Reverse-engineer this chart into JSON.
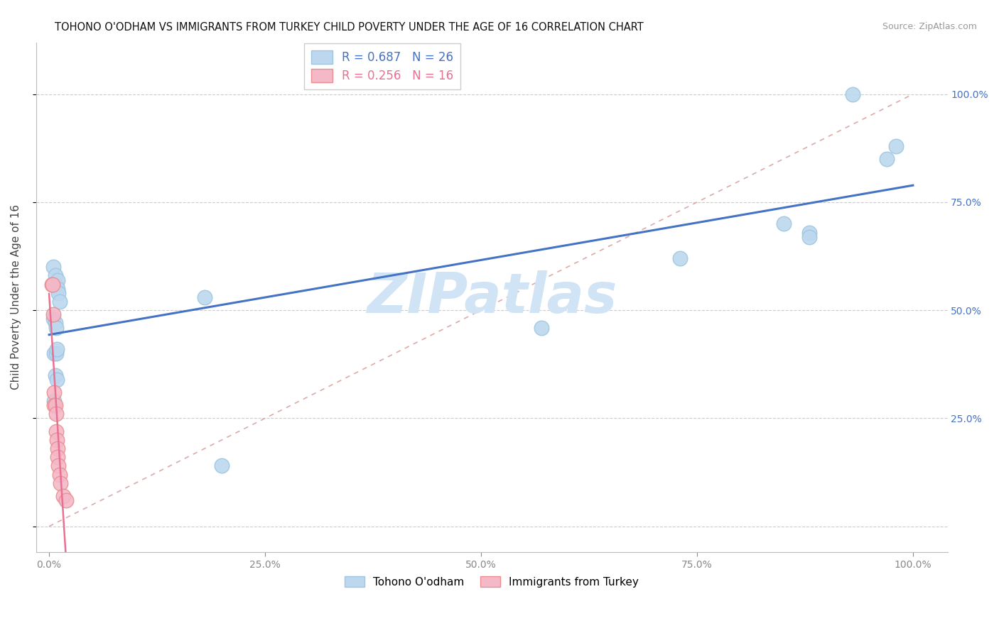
{
  "title": "TOHONO O'ODHAM VS IMMIGRANTS FROM TURKEY CHILD POVERTY UNDER THE AGE OF 16 CORRELATION CHART",
  "source": "Source: ZipAtlas.com",
  "ylabel": "Child Poverty Under the Age of 16",
  "blue_label": "Tohono O'odham",
  "pink_label": "Immigrants from Turkey",
  "blue_R": 0.687,
  "blue_N": 26,
  "pink_R": 0.256,
  "pink_N": 16,
  "blue_points_x": [
    0.005,
    0.007,
    0.008,
    0.01,
    0.01,
    0.011,
    0.012,
    0.005,
    0.007,
    0.008,
    0.006,
    0.008,
    0.009,
    0.007,
    0.009,
    0.006,
    0.18,
    0.2,
    0.57,
    0.73,
    0.85,
    0.88,
    0.88,
    0.93,
    0.97,
    0.98
  ],
  "blue_points_y": [
    0.6,
    0.58,
    0.56,
    0.57,
    0.55,
    0.54,
    0.52,
    0.48,
    0.47,
    0.46,
    0.4,
    0.4,
    0.41,
    0.35,
    0.34,
    0.29,
    0.53,
    0.14,
    0.46,
    0.62,
    0.7,
    0.68,
    0.67,
    1.0,
    0.85,
    0.88
  ],
  "pink_points_x": [
    0.003,
    0.004,
    0.005,
    0.006,
    0.006,
    0.007,
    0.008,
    0.008,
    0.009,
    0.01,
    0.01,
    0.011,
    0.012,
    0.013,
    0.016,
    0.02
  ],
  "pink_points_y": [
    0.56,
    0.56,
    0.49,
    0.31,
    0.28,
    0.28,
    0.26,
    0.22,
    0.2,
    0.18,
    0.16,
    0.14,
    0.12,
    0.1,
    0.07,
    0.06
  ],
  "blue_line_color": "#4472C4",
  "pink_line_color": "#E87090",
  "blue_dot_facecolor": "#BDD7EE",
  "blue_dot_edgecolor": "#9EC6E0",
  "pink_dot_facecolor": "#F4B8C8",
  "pink_dot_edgecolor": "#E89090",
  "diag_line_color": "#DDAAAA",
  "watermark_text": "ZIPatlas",
  "watermark_color": "#D0E4F5",
  "grid_color": "#CCCCCC",
  "right_axis_tick_color": "#4472C4",
  "legend_box_color": "#CCCCCC",
  "ytick_labels": [
    "25.0%",
    "50.0%",
    "75.0%",
    "100.0%"
  ],
  "xtick_labels": [
    "0.0%",
    "25.0%",
    "50.0%",
    "75.0%",
    "100.0%"
  ]
}
